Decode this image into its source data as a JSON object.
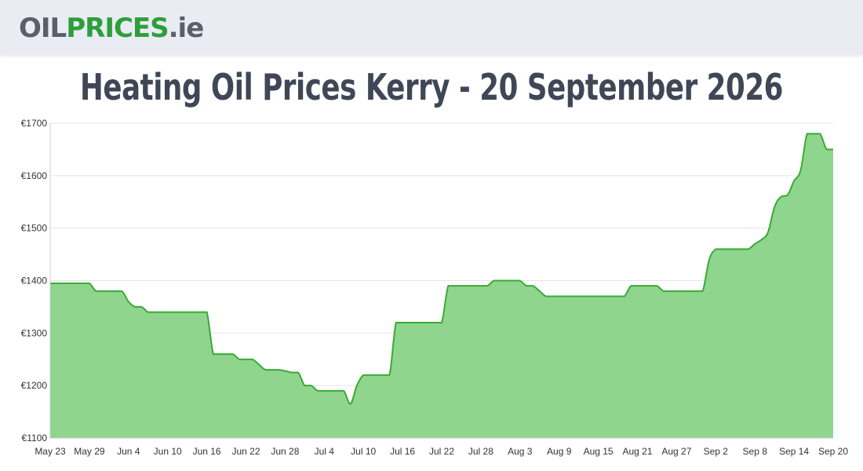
{
  "header": {
    "logo_part1": "OIL",
    "logo_part2": "PRICES",
    "logo_part3": ".ie"
  },
  "page_title": "Heating Oil Prices Kerry - 20 September 2026",
  "colors": {
    "line": "#3aaa35",
    "fill": "#8fd58d",
    "grid": "#e5e5e5",
    "logo_green": "#2e9e3a",
    "logo_grey": "#5a5f6b",
    "title": "#3f4757"
  },
  "chart_data": {
    "type": "area",
    "title": "",
    "xlabel": "",
    "ylabel": "",
    "ylim": [
      1100,
      1700
    ],
    "y_ticks": [
      1100,
      1200,
      1300,
      1400,
      1500,
      1600,
      1700
    ],
    "y_tick_labels": [
      "€1100",
      "€1200",
      "€1300",
      "€1400",
      "€1500",
      "€1600",
      "€1700"
    ],
    "x_tick_labels": [
      "May 23",
      "May 29",
      "Jun 4",
      "Jun 10",
      "Jun 16",
      "Jun 22",
      "Jun 28",
      "Jul 4",
      "Jul 10",
      "Jul 16",
      "Jul 22",
      "Jul 28",
      "Aug 3",
      "Aug 9",
      "Aug 15",
      "Aug 21",
      "Aug 27",
      "Sep 2",
      "Sep 8",
      "Sep 14",
      "Sep 20"
    ],
    "grid": true,
    "legend": "none",
    "series": [
      {
        "x": [
          "May 23",
          "May 24",
          "May 25",
          "May 26",
          "May 27",
          "May 28",
          "May 29",
          "May 30",
          "May 31",
          "Jun 1",
          "Jun 2",
          "Jun 3",
          "Jun 4",
          "Jun 5",
          "Jun 6",
          "Jun 7",
          "Jun 8",
          "Jun 9",
          "Jun 10",
          "Jun 11",
          "Jun 12",
          "Jun 13",
          "Jun 14",
          "Jun 15",
          "Jun 16",
          "Jun 17",
          "Jun 18",
          "Jun 19",
          "Jun 20",
          "Jun 21",
          "Jun 22",
          "Jun 23",
          "Jun 24",
          "Jun 25",
          "Jun 26",
          "Jun 27",
          "Jun 28",
          "Jun 29",
          "Jun 30",
          "Jul 1",
          "Jul 2",
          "Jul 3",
          "Jul 4",
          "Jul 5",
          "Jul 6",
          "Jul 7",
          "Jul 8",
          "Jul 9",
          "Jul 10",
          "Jul 11",
          "Jul 12",
          "Jul 13",
          "Jul 14",
          "Jul 15",
          "Jul 16",
          "Jul 17",
          "Jul 18",
          "Jul 19",
          "Jul 20",
          "Jul 21",
          "Jul 22",
          "Jul 23",
          "Jul 24",
          "Jul 25",
          "Jul 26",
          "Jul 27",
          "Jul 28",
          "Jul 29",
          "Jul 30",
          "Jul 31",
          "Aug 1",
          "Aug 2",
          "Aug 3",
          "Aug 4",
          "Aug 5",
          "Aug 6",
          "Aug 7",
          "Aug 8",
          "Aug 9",
          "Aug 10",
          "Aug 11",
          "Aug 12",
          "Aug 13",
          "Aug 14",
          "Aug 15",
          "Aug 16",
          "Aug 17",
          "Aug 18",
          "Aug 19",
          "Aug 20",
          "Aug 21",
          "Aug 22",
          "Aug 23",
          "Aug 24",
          "Aug 25",
          "Aug 26",
          "Aug 27",
          "Aug 28",
          "Aug 29",
          "Aug 30",
          "Aug 31",
          "Sep 1",
          "Sep 2",
          "Sep 3",
          "Sep 4",
          "Sep 5",
          "Sep 6",
          "Sep 7",
          "Sep 8",
          "Sep 9",
          "Sep 10",
          "Sep 11",
          "Sep 12",
          "Sep 13",
          "Sep 14",
          "Sep 15",
          "Sep 16",
          "Sep 17",
          "Sep 18",
          "Sep 19",
          "Sep 20"
        ],
        "values": [
          1395,
          1395,
          1395,
          1395,
          1395,
          1395,
          1395,
          1380,
          1380,
          1380,
          1380,
          1380,
          1360,
          1350,
          1350,
          1340,
          1340,
          1340,
          1340,
          1340,
          1340,
          1340,
          1340,
          1340,
          1340,
          1260,
          1260,
          1260,
          1260,
          1250,
          1250,
          1250,
          1240,
          1230,
          1230,
          1230,
          1228,
          1225,
          1225,
          1200,
          1200,
          1190,
          1190,
          1190,
          1190,
          1190,
          1165,
          1200,
          1220,
          1220,
          1220,
          1220,
          1220,
          1320,
          1320,
          1320,
          1320,
          1320,
          1320,
          1320,
          1320,
          1390,
          1390,
          1390,
          1390,
          1390,
          1390,
          1390,
          1400,
          1400,
          1400,
          1400,
          1400,
          1390,
          1390,
          1380,
          1370,
          1370,
          1370,
          1370,
          1370,
          1370,
          1370,
          1370,
          1370,
          1370,
          1370,
          1370,
          1370,
          1390,
          1390,
          1390,
          1390,
          1390,
          1380,
          1380,
          1380,
          1380,
          1380,
          1380,
          1380,
          1440,
          1460,
          1460,
          1460,
          1460,
          1460,
          1460,
          1470,
          1478,
          1492,
          1540,
          1560,
          1563,
          1590,
          1610,
          1680,
          1680,
          1680,
          1650,
          1650
        ]
      }
    ]
  }
}
